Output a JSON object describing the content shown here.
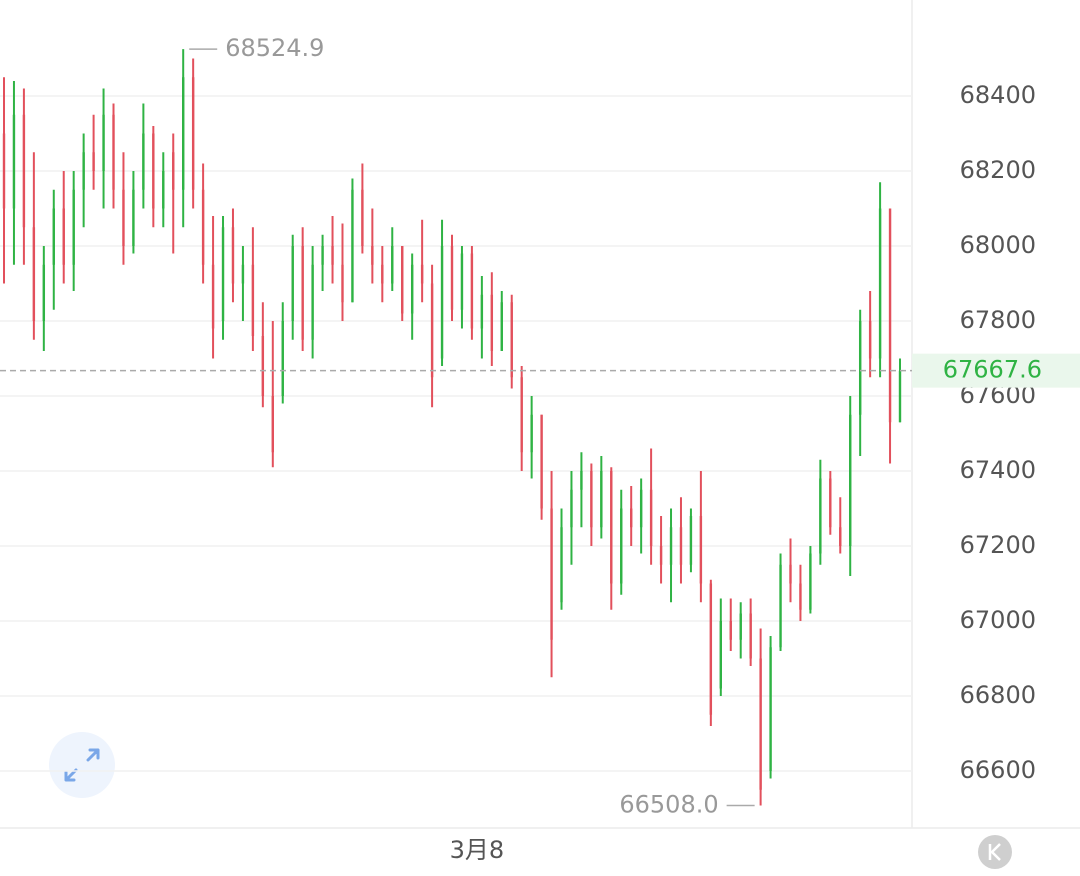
{
  "chart_data": {
    "type": "candlestick",
    "open": [
      68300,
      68100,
      68350,
      68050,
      67800,
      67950,
      68100,
      67950,
      68150,
      68250,
      68200,
      68350,
      68150,
      68000,
      68150,
      68300,
      68100,
      68250,
      68150,
      68450,
      68150,
      67950,
      67800,
      68050,
      67900,
      67950,
      67760,
      67600,
      67600,
      67800,
      68000,
      67750,
      67950,
      68000,
      67950,
      67850,
      68150,
      68000,
      67950,
      67900,
      68000,
      67820,
      67950,
      67900,
      67700,
      68000,
      67830,
      67980,
      67780,
      67870,
      67720,
      67850,
      67650,
      67450,
      67550,
      67300,
      67050,
      67250,
      67350,
      67400,
      67250,
      67400,
      67100,
      67300,
      67250,
      67350,
      67200,
      67150,
      67250,
      67150,
      67280,
      67100,
      66820,
      67000,
      66950,
      67020,
      66900,
      66600,
      66930,
      67150,
      67100,
      67030,
      67180,
      67380,
      67250,
      67200,
      67550,
      67800,
      67700,
      68100,
      67530
    ],
    "high": [
      68450,
      68440,
      68420,
      68250,
      68000,
      68150,
      68200,
      68200,
      68300,
      68350,
      68420,
      68380,
      68250,
      68200,
      68380,
      68320,
      68250,
      68300,
      68524.9,
      68500,
      68220,
      68080,
      68080,
      68100,
      68000,
      68050,
      67850,
      67800,
      67850,
      68030,
      68050,
      68000,
      68030,
      68080,
      68060,
      68180,
      68220,
      68100,
      68000,
      68050,
      68000,
      67980,
      68070,
      67950,
      68070,
      68030,
      68000,
      68000,
      67920,
      67930,
      67880,
      67870,
      67680,
      67600,
      67550,
      67400,
      67300,
      67400,
      67450,
      67420,
      67440,
      67410,
      67350,
      67360,
      67380,
      67460,
      67280,
      67300,
      67330,
      67300,
      67400,
      67110,
      67060,
      67060,
      67050,
      67060,
      66980,
      66960,
      67180,
      67220,
      67150,
      67200,
      67430,
      67400,
      67330,
      67600,
      67830,
      67880,
      68170,
      68100,
      67700
    ],
    "low": [
      67900,
      67950,
      67950,
      67750,
      67720,
      67830,
      67900,
      67880,
      68050,
      68150,
      68100,
      68100,
      67950,
      67980,
      68100,
      68050,
      68050,
      67980,
      68050,
      68100,
      67900,
      67700,
      67750,
      67850,
      67800,
      67720,
      67570,
      67410,
      67580,
      67750,
      67720,
      67700,
      67880,
      67900,
      67800,
      67850,
      67980,
      67900,
      67850,
      67880,
      67800,
      67750,
      67850,
      67570,
      67680,
      67800,
      67780,
      67750,
      67700,
      67680,
      67720,
      67620,
      67400,
      67380,
      67270,
      66850,
      67030,
      67150,
      67250,
      67200,
      67220,
      67030,
      67070,
      67200,
      67180,
      67150,
      67100,
      67050,
      67100,
      67130,
      67050,
      66720,
      66800,
      66920,
      66900,
      66880,
      66508,
      66580,
      66920,
      67050,
      67000,
      67020,
      67150,
      67230,
      67180,
      67120,
      67440,
      67650,
      67650,
      67420,
      67530
    ],
    "close": [
      68100,
      68350,
      68050,
      67800,
      67950,
      68100,
      67950,
      68150,
      68250,
      68200,
      68350,
      68150,
      68000,
      68150,
      68300,
      68100,
      68200,
      68150,
      68450,
      68150,
      67950,
      67780,
      68050,
      67900,
      67950,
      67760,
      67600,
      67450,
      67800,
      68000,
      67750,
      67950,
      68000,
      67950,
      67850,
      68150,
      68000,
      67950,
      67900,
      68000,
      67820,
      67950,
      67900,
      67650,
      68000,
      67830,
      67980,
      67780,
      67870,
      67720,
      67850,
      67650,
      67450,
      67550,
      67300,
      66950,
      67250,
      67350,
      67400,
      67250,
      67400,
      67100,
      67300,
      67250,
      67350,
      67200,
      67150,
      67250,
      67150,
      67280,
      67100,
      66750,
      67000,
      66950,
      67020,
      66900,
      66550,
      66930,
      67150,
      67100,
      67030,
      67180,
      67380,
      67250,
      67200,
      67550,
      67800,
      67700,
      68100,
      67530,
      67667.6
    ],
    "up_color": "#2fb344",
    "down_color": "#e2505c",
    "extreme_labels": {
      "high": "68524.9",
      "low": "66508.0"
    },
    "xticks": [
      {
        "value": 47.5,
        "label": "3月8"
      }
    ],
    "ylim": [
      66448,
      68656
    ],
    "yticks": [
      66600,
      66800,
      67000,
      67200,
      67400,
      67600,
      67800,
      68000,
      68200,
      68400
    ],
    "grid": true
  }
}
